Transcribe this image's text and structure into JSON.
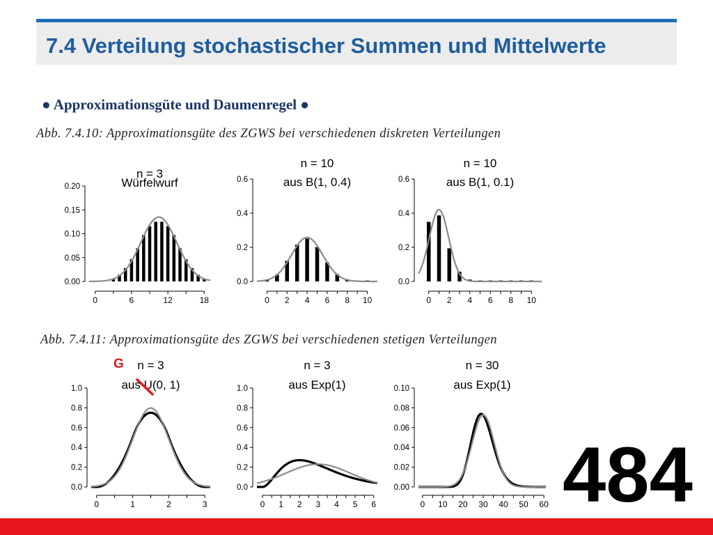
{
  "slide": {
    "title": "7.4 Verteilung stochastischer Summen und Mittelwerte",
    "subtitle": "● Approximationsgüte und Daumenregel ●",
    "caption_discrete": "Abb. 7.4.10: Approximationsgüte des ZGWS bei verschiedenen diskreten Verteilungen",
    "caption_continuous": "Abb. 7.4.11: Approximationsgüte des ZGWS bei verschiedenen stetigen Verteilungen",
    "annotation": "G",
    "slide_number": "484",
    "colors": {
      "title": "#1e5d9f",
      "rule": "#1f6fba",
      "subtitle": "#1b3568",
      "accent": "#e8161b",
      "curve_gray": "#8a8a8a"
    }
  },
  "chart_data": [
    {
      "type": "bar",
      "title_n": "n = 3",
      "title_dist": "Würfelwurf",
      "xlim": [
        -1,
        19
      ],
      "ylim": [
        0,
        0.2
      ],
      "xticks": [
        0,
        6,
        12,
        18
      ],
      "yticks": [
        0.0,
        0.05,
        0.1,
        0.15,
        0.2
      ],
      "yticklabels": [
        "0.00",
        "0.05",
        "0.10",
        "0.15",
        "0.20"
      ],
      "x": [
        3,
        4,
        5,
        6,
        7,
        8,
        9,
        10,
        11,
        12,
        13,
        14,
        15,
        16,
        17,
        18
      ],
      "values": [
        0.0046,
        0.0139,
        0.0278,
        0.0463,
        0.0694,
        0.0972,
        0.1157,
        0.125,
        0.125,
        0.1157,
        0.0972,
        0.0694,
        0.0463,
        0.0278,
        0.0139,
        0.0046
      ],
      "normal_approx": {
        "mean": 10.5,
        "sd": 2.958
      }
    },
    {
      "type": "bar",
      "title_n": "n = 10",
      "title_dist": "aus B(1, 0.4)",
      "xlim": [
        -1,
        11
      ],
      "ylim": [
        0,
        0.6
      ],
      "xticks": [
        0,
        2,
        4,
        6,
        8,
        10
      ],
      "yticks": [
        0.0,
        0.2,
        0.4,
        0.6
      ],
      "yticklabels": [
        "0.0",
        "0.2",
        "0.4",
        "0.6"
      ],
      "x": [
        0,
        1,
        2,
        3,
        4,
        5,
        6,
        7,
        8,
        9,
        10
      ],
      "values": [
        0.006,
        0.04,
        0.121,
        0.215,
        0.251,
        0.201,
        0.111,
        0.042,
        0.011,
        0.002,
        0.0001
      ],
      "normal_approx": {
        "mean": 4,
        "sd": 1.549
      }
    },
    {
      "type": "bar",
      "title_n": "n = 10",
      "title_dist": "aus B(1, 0.1)",
      "xlim": [
        -1,
        11
      ],
      "ylim": [
        0,
        0.6
      ],
      "xticks": [
        0,
        2,
        4,
        6,
        8,
        10
      ],
      "yticks": [
        0.0,
        0.2,
        0.4,
        0.6
      ],
      "yticklabels": [
        "0.0",
        "0.2",
        "0.4",
        "0.6"
      ],
      "x": [
        0,
        1,
        2,
        3,
        4,
        5,
        6,
        7,
        8,
        9,
        10
      ],
      "values": [
        0.349,
        0.387,
        0.194,
        0.057,
        0.011,
        0.0015,
        0.0001,
        0,
        0,
        0,
        0
      ],
      "normal_approx": {
        "mean": 1,
        "sd": 0.949
      }
    },
    {
      "type": "line",
      "title_n": "n = 3",
      "title_dist": "aus U(0, 1)",
      "xlim": [
        -0.15,
        3.15
      ],
      "ylim": [
        0,
        1.0
      ],
      "xticks": [
        0,
        1,
        2,
        3
      ],
      "yticks": [
        0.0,
        0.2,
        0.4,
        0.6,
        0.8,
        1.0
      ],
      "yticklabels": [
        "0.0",
        "0.2",
        "0.4",
        "0.6",
        "0.8",
        "1.0"
      ],
      "exact": "irwin_hall_3",
      "normal_approx": {
        "mean": 1.5,
        "sd": 0.5
      }
    },
    {
      "type": "line",
      "title_n": "n = 3",
      "title_dist": "aus Exp(1)",
      "xlim": [
        -0.3,
        6.2
      ],
      "ylim": [
        0,
        1.0
      ],
      "xticks": [
        0,
        1,
        2,
        3,
        4,
        5,
        6
      ],
      "yticks": [
        0.0,
        0.2,
        0.4,
        0.6,
        0.8,
        1.0
      ],
      "yticklabels": [
        "0.0",
        "0.2",
        "0.4",
        "0.6",
        "0.8",
        "1.0"
      ],
      "exact": "gamma_3",
      "normal_approx": {
        "mean": 3,
        "sd": 1.732
      }
    },
    {
      "type": "line",
      "title_n": "n = 30",
      "title_dist": "aus Exp(1)",
      "xlim": [
        -2,
        61
      ],
      "ylim": [
        0,
        0.1
      ],
      "xticks": [
        0,
        10,
        20,
        30,
        40,
        50,
        60
      ],
      "yticks": [
        0.0,
        0.02,
        0.04,
        0.06,
        0.08,
        0.1
      ],
      "yticklabels": [
        "0.00",
        "0.02",
        "0.04",
        "0.06",
        "0.08",
        "0.10"
      ],
      "exact": "gamma_30",
      "normal_approx": {
        "mean": 30,
        "sd": 5.477
      }
    }
  ]
}
